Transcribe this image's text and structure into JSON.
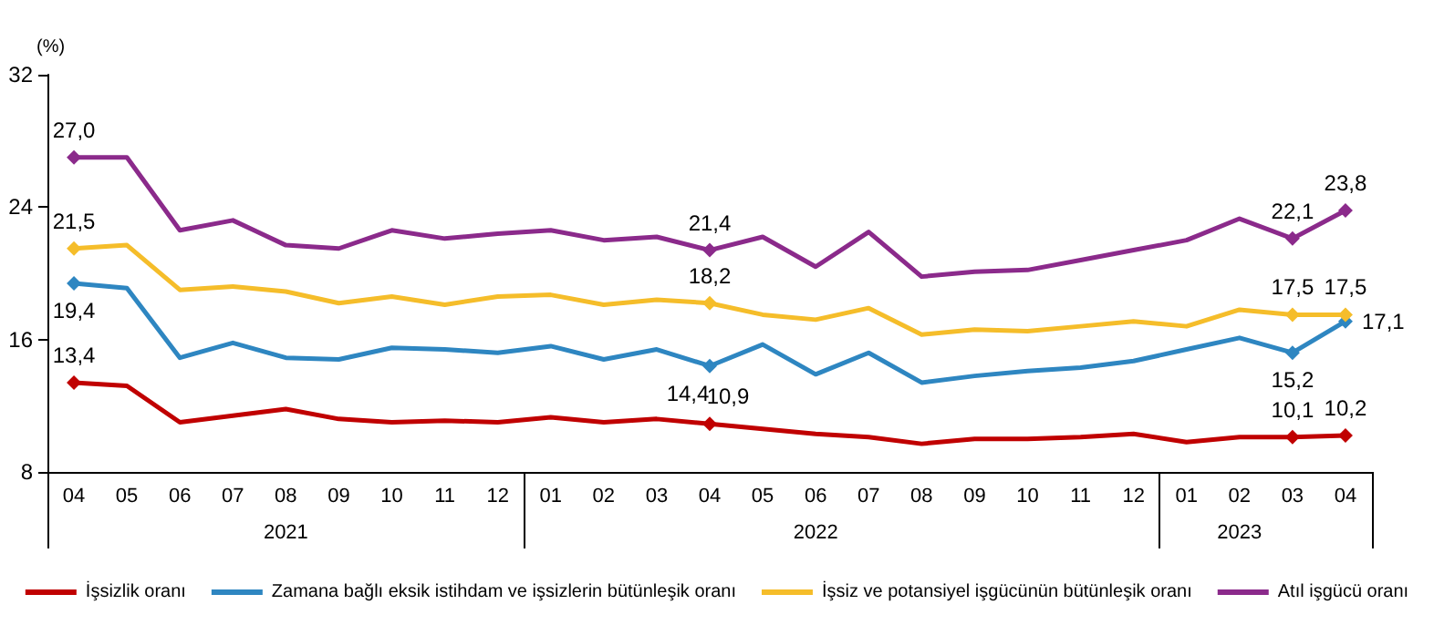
{
  "chart_data": {
    "type": "line",
    "ylabel": "(%)",
    "categories": [
      "04",
      "05",
      "06",
      "07",
      "08",
      "09",
      "10",
      "11",
      "12",
      "01",
      "02",
      "03",
      "04",
      "05",
      "06",
      "07",
      "08",
      "09",
      "10",
      "11",
      "12",
      "01",
      "02",
      "03",
      "04"
    ],
    "annotations": [
      "2021",
      "2022",
      "2023"
    ],
    "ylim": [
      8,
      32
    ],
    "yticks": [
      8,
      16,
      24,
      32
    ],
    "grid": false,
    "legend": "bottom",
    "line_style": "solid",
    "series": [
      {
        "name": "İşsizlik oranı",
        "color": "#c00000",
        "values": [
          13.4,
          13.2,
          11.0,
          11.4,
          11.8,
          11.2,
          11.0,
          11.1,
          11.0,
          11.3,
          11.0,
          11.2,
          10.9,
          10.6,
          10.3,
          10.1,
          9.7,
          10.0,
          10.0,
          10.1,
          10.3,
          9.8,
          10.1,
          10.1,
          10.2
        ],
        "value_labels": [
          "13,4",
          null,
          null,
          null,
          null,
          null,
          null,
          null,
          null,
          null,
          null,
          null,
          "10,9",
          null,
          null,
          null,
          null,
          null,
          null,
          null,
          null,
          null,
          null,
          "10,1",
          "10,2"
        ]
      },
      {
        "name": "Zamana bağlı eksik istihdam ve işsizlerin bütünleşik oranı",
        "color": "#2e86c1",
        "values": [
          19.4,
          19.1,
          14.9,
          15.8,
          14.9,
          14.8,
          15.5,
          15.4,
          15.2,
          15.6,
          14.8,
          15.4,
          14.4,
          15.7,
          13.9,
          15.2,
          13.4,
          13.8,
          14.1,
          14.3,
          14.7,
          15.4,
          16.1,
          15.2,
          17.1
        ],
        "value_labels": [
          "19,4",
          null,
          null,
          null,
          null,
          null,
          null,
          null,
          null,
          null,
          null,
          null,
          "14,4",
          null,
          null,
          null,
          null,
          null,
          null,
          null,
          null,
          null,
          null,
          "15,2",
          "17,1"
        ]
      },
      {
        "name": "İşsiz ve potansiyel işgücünün bütünleşik oranı",
        "color": "#f5bd2a",
        "values": [
          21.5,
          21.7,
          19.0,
          19.2,
          18.9,
          18.2,
          18.6,
          18.1,
          18.6,
          18.7,
          18.1,
          18.4,
          18.2,
          17.5,
          17.2,
          17.9,
          16.3,
          16.6,
          16.5,
          16.8,
          17.1,
          16.8,
          17.8,
          17.5,
          17.5
        ],
        "value_labels": [
          "21,5",
          null,
          null,
          null,
          null,
          null,
          null,
          null,
          null,
          null,
          null,
          null,
          "18,2",
          null,
          null,
          null,
          null,
          null,
          null,
          null,
          null,
          null,
          null,
          "17,5",
          "17,5"
        ]
      },
      {
        "name": "Atıl işgücü oranı",
        "color": "#8b2a8b",
        "values": [
          27.0,
          27.0,
          22.6,
          23.2,
          21.7,
          21.5,
          22.6,
          22.1,
          22.4,
          22.6,
          22.0,
          22.2,
          21.4,
          22.2,
          20.4,
          22.5,
          19.8,
          20.1,
          20.2,
          20.8,
          21.4,
          22.0,
          23.3,
          22.1,
          23.8
        ],
        "value_labels": [
          "27,0",
          null,
          null,
          null,
          null,
          null,
          null,
          null,
          null,
          null,
          null,
          null,
          "21,4",
          null,
          null,
          null,
          null,
          null,
          null,
          null,
          null,
          null,
          null,
          "22,1",
          "23,8"
        ]
      }
    ]
  }
}
